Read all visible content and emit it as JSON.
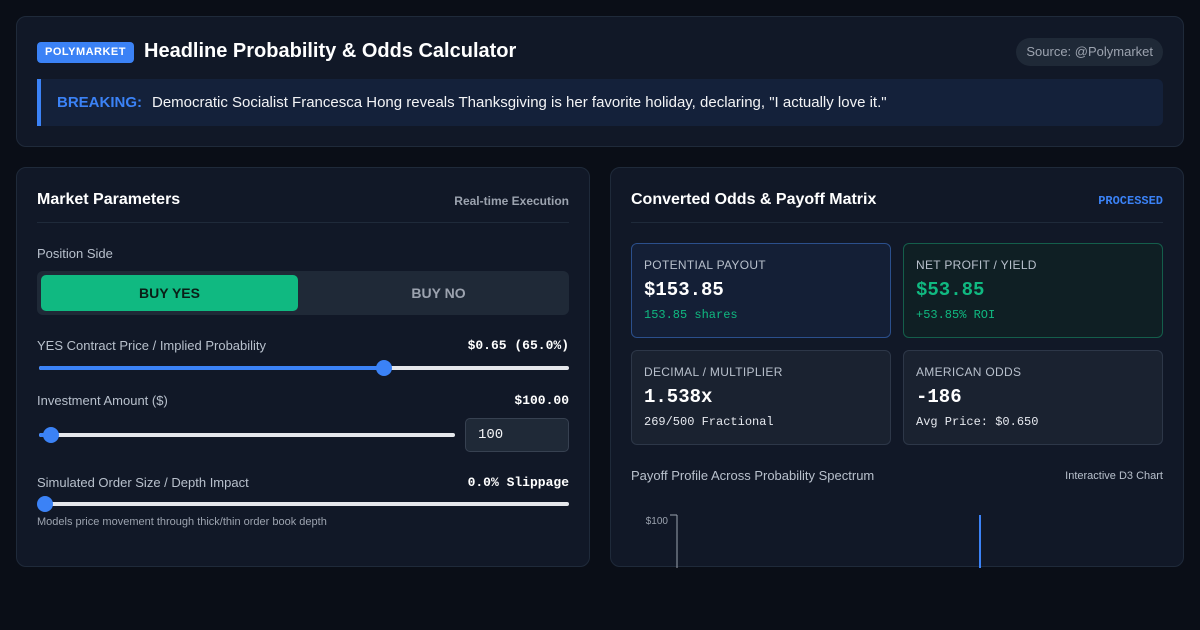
{
  "header": {
    "badge": "POLYMARKET",
    "title": "Headline Probability & Odds Calculator",
    "source": "Source: @Polymarket",
    "breaking_label": "BREAKING:",
    "breaking_text": "Democratic Socialist Francesca Hong reveals Thanksgiving is her favorite holiday, declaring, \"I actually love it.\""
  },
  "params": {
    "title": "Market Parameters",
    "tag": "Real-time Execution",
    "position_label": "Position Side",
    "buy_yes": "BUY YES",
    "buy_no": "BUY NO",
    "price_label": "YES Contract Price / Implied Probability",
    "price_value": "$0.65 (65.0%)",
    "price_fraction": 0.65,
    "investment_label": "Investment Amount ($)",
    "investment_value": "$100.00",
    "investment_input": "100",
    "investment_fraction": 0.03,
    "order_label": "Simulated Order Size / Depth Impact",
    "order_value": "0.0% Slippage",
    "order_fraction": 0.0,
    "hint": "Models price movement through thick/thin order book depth"
  },
  "results": {
    "title": "Converted Odds & Payoff Matrix",
    "tag": "PROCESSED",
    "payout_label": "POTENTIAL PAYOUT",
    "payout_value": "$153.85",
    "payout_sub": "153.85 shares",
    "profit_label": "NET PROFIT / YIELD",
    "profit_value": "$53.85",
    "profit_sub": "+53.85% ROI",
    "decimal_label": "DECIMAL / MULTIPLIER",
    "decimal_value": "1.538x",
    "decimal_sub": "269/500 Fractional",
    "american_label": "AMERICAN ODDS",
    "american_value": "-186",
    "american_sub": "Avg Price: $0.650",
    "chart_caption": "Payoff Profile Across Probability Spectrum",
    "chart_tag": "Interactive D3 Chart",
    "chart_tick": "$100"
  },
  "colors": {
    "accent": "#3b82f6",
    "success": "#10b981",
    "background": "#0a0e17",
    "panel": "#111827"
  }
}
